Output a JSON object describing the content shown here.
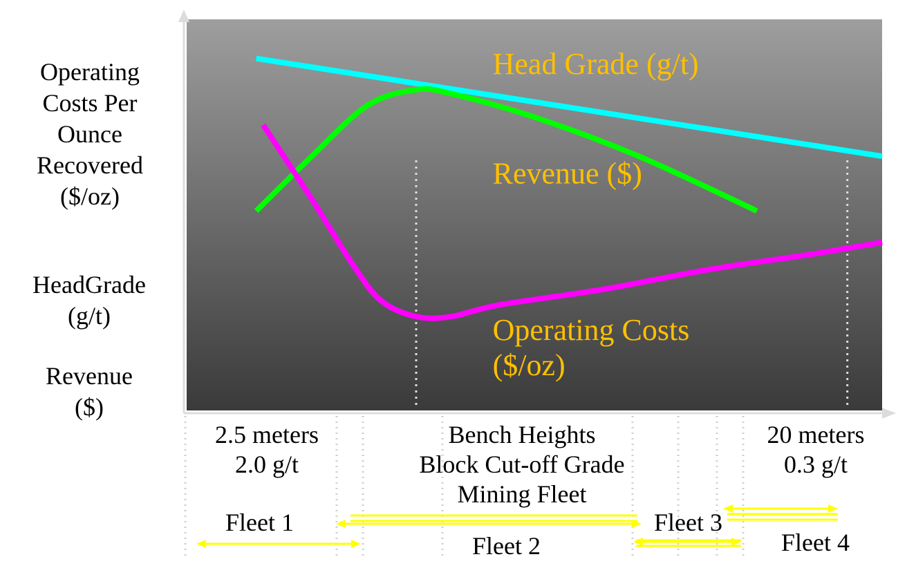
{
  "y_axis_labels": {
    "operating_costs": "Operating\nCosts Per\nOunce\nRecovered\n($/oz)",
    "head_grade": "HeadGrade\n(g/t)",
    "revenue": "Revenue\n($)"
  },
  "x_axis_labels": {
    "left": "2.5 meters\n2.0 g/t",
    "center": "Bench Heights\nBlock Cut-off Grade\nMining Fleet",
    "right": "20 meters\n0.3 g/t"
  },
  "fleets": [
    {
      "label": "Fleet 1"
    },
    {
      "label": "Fleet 2"
    },
    {
      "label": "Fleet 3"
    },
    {
      "label": "Fleet 4"
    }
  ],
  "colors": {
    "head_grade": "#00ffff",
    "revenue": "#00ff00",
    "operating_costs": "#ff00ff",
    "annotation_text": "#ffc000",
    "fleet_arrows": "#ffff00",
    "plot_gradient_top": "#9e9e9e",
    "plot_gradient_bottom": "#3a3a3a"
  },
  "chart_data": {
    "type": "line",
    "xlabel": "Bench Heights / Block Cut-off Grade / Mining Fleet",
    "x_range": [
      0,
      100
    ],
    "y_range": [
      0,
      100
    ],
    "x_ticks_shown": [
      "2.5 meters 2.0 g/t",
      "20 meters 0.3 g/t"
    ],
    "grid": false,
    "legend": "inline labels",
    "note": "qualitative schematic, no numeric scales",
    "series": [
      {
        "name": "Head Grade (g/t)",
        "color": "#00ffff",
        "points": [
          [
            10,
            90
          ],
          [
            100,
            65
          ]
        ]
      },
      {
        "name": "Revenue ($)",
        "color": "#00ff00",
        "points": [
          [
            10,
            51
          ],
          [
            18,
            65
          ],
          [
            26,
            78
          ],
          [
            33,
            82
          ],
          [
            38,
            81
          ],
          [
            50,
            75
          ],
          [
            65,
            65
          ],
          [
            82,
            51
          ]
        ]
      },
      {
        "name": "Operating Costs ($/oz)",
        "color": "#ff00ff",
        "points": [
          [
            11,
            73
          ],
          [
            18,
            54
          ],
          [
            24,
            37
          ],
          [
            28,
            28
          ],
          [
            33,
            24
          ],
          [
            38,
            24
          ],
          [
            45,
            27
          ],
          [
            60,
            31
          ],
          [
            75,
            36
          ],
          [
            90,
            40
          ],
          [
            100,
            43
          ]
        ]
      }
    ],
    "annotations": [
      {
        "text": "Head Grade (g/t)",
        "x": 44,
        "y": 86
      },
      {
        "text": "Revenue ($)",
        "x": 44,
        "y": 58
      },
      {
        "text": "Operating Costs",
        "x": 44,
        "y": 18
      },
      {
        "text": "($/oz)",
        "x": 44,
        "y": 9
      }
    ],
    "vlines": [
      33,
      95
    ]
  }
}
